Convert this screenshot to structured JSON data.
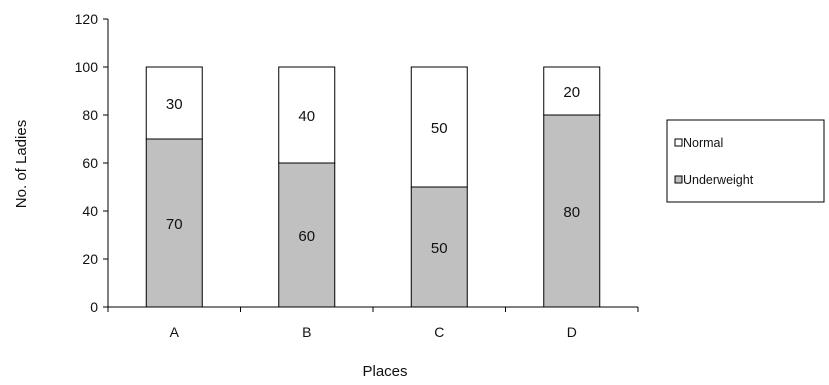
{
  "chart_data": {
    "type": "bar",
    "stacked": true,
    "categories": [
      "A",
      "B",
      "C",
      "D"
    ],
    "series": [
      {
        "name": "Underweight",
        "values": [
          70,
          60,
          50,
          80
        ],
        "color": "#c0c0c0"
      },
      {
        "name": "Normal",
        "values": [
          30,
          40,
          50,
          20
        ],
        "color": "#ffffff"
      }
    ],
    "xlabel": "Places",
    "ylabel": "No. of Ladies",
    "ylim": [
      0,
      120
    ],
    "yticks": [
      0,
      20,
      40,
      60,
      80,
      100,
      120
    ],
    "tick_labels": [
      "0",
      "20",
      "40",
      "60",
      "80",
      "100",
      "120"
    ],
    "grid": false,
    "legend": {
      "position": "right",
      "entries": [
        "Normal",
        "Underweight"
      ]
    },
    "data_labels": true
  }
}
